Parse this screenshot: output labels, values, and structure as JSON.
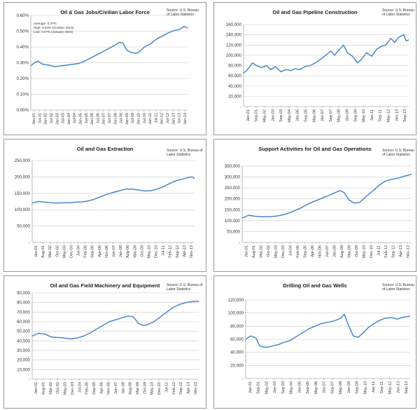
{
  "colors": {
    "line": "#4a86c8",
    "grid": "#c8c8c8",
    "axis": "#8a8a8a",
    "text": "#333333"
  },
  "chart_data": [
    {
      "type": "line",
      "title": "Oil & Gas Jobs/Civilian Labor Force",
      "source_lines": [
        "Source: U.S. Bureau",
        "of Labor Statistics"
      ],
      "stats": [
        "Average: 0.37%",
        "High: 0.53% (October 2013)",
        "Low: 0.27% (January 2003)"
      ],
      "ylim": [
        0,
        0.6
      ],
      "yticks": [
        "0.00%",
        "0.10%",
        "0.20%",
        "0.30%",
        "0.40%",
        "0.50%",
        "0.60%"
      ],
      "xticks": [
        "Jan-01",
        "Jul-01",
        "Jan-02",
        "Jul-02",
        "Jan-03",
        "Jul-03",
        "Jan-04",
        "Jul-04",
        "Jan-05",
        "Jul-05",
        "Jan-06",
        "Jul-06",
        "Jan-07",
        "Jul-07",
        "Jan-08",
        "Jul-08",
        "Jan-09",
        "Jul-09",
        "Jan-10",
        "Jul-10",
        "Jan-11",
        "Jul-11",
        "Jan-12",
        "Jul-12",
        "Jan-13",
        "Jul-13",
        "Jan-14"
      ],
      "x": [
        2001.0,
        2001.3,
        2001.6,
        2002.0,
        2002.5,
        2003.0,
        2003.5,
        2004.0,
        2004.5,
        2005.0,
        2005.5,
        2006.0,
        2006.5,
        2007.0,
        2007.5,
        2008.0,
        2008.4,
        2008.7,
        2009.0,
        2009.4,
        2009.8,
        2010.0,
        2010.5,
        2011.0,
        2011.5,
        2012.0,
        2012.5,
        2013.0,
        2013.4,
        2013.8,
        2014.1
      ],
      "values": [
        0.28,
        0.3,
        0.31,
        0.29,
        0.285,
        0.275,
        0.28,
        0.285,
        0.29,
        0.295,
        0.31,
        0.33,
        0.35,
        0.37,
        0.39,
        0.41,
        0.43,
        0.425,
        0.38,
        0.365,
        0.36,
        0.365,
        0.4,
        0.42,
        0.45,
        0.47,
        0.49,
        0.505,
        0.51,
        0.53,
        0.52
      ]
    },
    {
      "type": "line",
      "title": "Oil and Gas Pipeline Construction",
      "source_lines": [
        "Source: U.S. Bureau",
        "of Labor Statistics"
      ],
      "ylim": [
        0,
        160000
      ],
      "yticks": [
        "-",
        "20,000",
        "40,000",
        "60,000",
        "80,000",
        "100,000",
        "120,000",
        "140,000",
        "160,000"
      ],
      "xticks": [
        "Jan-01",
        "Sep-01",
        "May-02",
        "Jan-03",
        "Sep-03",
        "May-04",
        "Jan-05",
        "Sep-05",
        "May-06",
        "Jan-07",
        "Sep-07",
        "May-08",
        "Jan-09",
        "Sep-09",
        "May-10",
        "Jan-11",
        "Sep-11",
        "May-12",
        "Jan-13",
        "Sep-13"
      ],
      "x": [
        2001.0,
        2001.4,
        2001.7,
        2002.0,
        2002.4,
        2002.8,
        2003.1,
        2003.5,
        2003.9,
        2004.3,
        2004.7,
        2005.0,
        2005.4,
        2005.8,
        2006.2,
        2006.6,
        2007.0,
        2007.4,
        2007.8,
        2008.1,
        2008.5,
        2008.8,
        2009.1,
        2009.5,
        2009.9,
        2010.2,
        2010.6,
        2011.0,
        2011.4,
        2011.8,
        2012.1,
        2012.5,
        2012.8,
        2013.1,
        2013.5,
        2013.7,
        2013.9
      ],
      "values": [
        65000,
        75000,
        85000,
        80000,
        76000,
        80000,
        72000,
        78000,
        68000,
        72000,
        70000,
        74000,
        72000,
        78000,
        80000,
        85000,
        92000,
        100000,
        108000,
        100000,
        112000,
        120000,
        105000,
        98000,
        85000,
        92000,
        105000,
        98000,
        112000,
        118000,
        120000,
        133000,
        125000,
        135000,
        140000,
        128000,
        130000
      ]
    },
    {
      "type": "line",
      "title": "Oil and Gas Extraction",
      "source_lines": [
        "Source: U.S. Bureau of",
        "Labor Statistics"
      ],
      "ylim": [
        0,
        250000
      ],
      "yticks": [
        "-",
        "50,000",
        "100,000",
        "150,000",
        "200,000",
        "250,000"
      ],
      "xticks": [
        "Jan-01",
        "Aug-01",
        "Mar-02",
        "Oct-02",
        "May-03",
        "Dec-03",
        "Jul-04",
        "Feb-05",
        "Sep-05",
        "Apr-06",
        "Nov-06",
        "Jun-07",
        "Jan-08",
        "Aug-08",
        "Mar-09",
        "Oct-09",
        "May-10",
        "Dec-10",
        "Jul-11",
        "Feb-12",
        "Sep-12",
        "Apr-13",
        "Nov-13"
      ],
      "x": [
        2001.0,
        2001.5,
        2002.0,
        2002.5,
        2003.0,
        2003.5,
        2004.0,
        2004.5,
        2005.0,
        2005.5,
        2006.0,
        2006.5,
        2007.0,
        2007.5,
        2008.0,
        2008.5,
        2009.0,
        2009.5,
        2010.0,
        2010.5,
        2011.0,
        2011.5,
        2012.0,
        2012.5,
        2013.0,
        2013.5,
        2013.8,
        2014.0
      ],
      "values": [
        120000,
        125000,
        123000,
        121000,
        120000,
        121000,
        121000,
        123000,
        124000,
        127000,
        132000,
        140000,
        147000,
        153000,
        158000,
        163000,
        163000,
        160000,
        157000,
        158000,
        163000,
        170000,
        180000,
        188000,
        193000,
        198000,
        200000,
        195000
      ]
    },
    {
      "type": "line",
      "title": "Support Activities for Oil and Gas Operations",
      "source_lines": [
        "Source: U.S. Bureau",
        "of Labor Statistics"
      ],
      "ylim": [
        0,
        350000
      ],
      "yticks": [
        "-",
        "50,000",
        "100,000",
        "150,000",
        "200,000",
        "250,000",
        "300,000",
        "350,000"
      ],
      "xticks": [
        "Jan-01",
        "Aug-01",
        "Mar-02",
        "Oct-02",
        "May-03",
        "Dec-03",
        "Jul-04",
        "Feb-05",
        "Sep-05",
        "Apr-06",
        "Nov-06",
        "Jun-07",
        "Jan-08",
        "Aug-08",
        "Mar-09",
        "Oct-09",
        "May-10",
        "Dec-10",
        "Jul-11",
        "Feb-12",
        "Sep-12",
        "Apr-13",
        "Nov-13"
      ],
      "x": [
        2001.0,
        2001.5,
        2002.0,
        2002.5,
        2003.0,
        2003.5,
        2004.0,
        2004.5,
        2005.0,
        2005.5,
        2006.0,
        2006.5,
        2007.0,
        2007.5,
        2008.0,
        2008.5,
        2008.8,
        2009.2,
        2009.6,
        2010.0,
        2010.5,
        2011.0,
        2011.5,
        2012.0,
        2012.5,
        2013.0,
        2013.5,
        2014.0
      ],
      "values": [
        112000,
        125000,
        120000,
        118000,
        118000,
        120000,
        125000,
        133000,
        145000,
        158000,
        175000,
        188000,
        200000,
        212000,
        225000,
        238000,
        230000,
        195000,
        180000,
        183000,
        210000,
        235000,
        262000,
        282000,
        290000,
        295000,
        305000,
        312000
      ]
    },
    {
      "type": "line",
      "title": "Oil and Gas Field Machinery and Equipment",
      "source_lines": [
        "Source: U.S. Bureau of",
        "Labor Statistics"
      ],
      "ylim": [
        0,
        90000
      ],
      "yticks": [
        "-",
        "10,000",
        "20,000",
        "30,000",
        "40,000",
        "50,000",
        "60,000",
        "70,000",
        "80,000",
        "90,000"
      ],
      "xticks": [
        "Jan-01",
        "Aug-01",
        "Mar-02",
        "Oct-02",
        "May-03",
        "Dec-03",
        "Jul-04",
        "Feb-05",
        "Sep-05",
        "Apr-06",
        "Nov-06",
        "Jun-07",
        "Jan-08",
        "Aug-08",
        "Mar-09",
        "Oct-09",
        "May-10",
        "Dec-10",
        "Jul-11",
        "Feb-12",
        "Sep-12",
        "Apr-13",
        "Nov-13"
      ],
      "x": [
        2001.0,
        2001.5,
        2002.0,
        2002.5,
        2003.0,
        2003.5,
        2004.0,
        2004.5,
        2005.0,
        2005.5,
        2006.0,
        2006.5,
        2007.0,
        2007.5,
        2008.0,
        2008.5,
        2008.9,
        2009.3,
        2009.7,
        2010.0,
        2010.5,
        2011.0,
        2011.5,
        2012.0,
        2012.5,
        2013.0,
        2013.5,
        2014.0
      ],
      "values": [
        45000,
        48000,
        47000,
        44000,
        43500,
        43000,
        42000,
        43000,
        45000,
        48000,
        52000,
        56000,
        60000,
        62000,
        64000,
        66000,
        65000,
        58000,
        56000,
        57000,
        60000,
        65000,
        70000,
        75000,
        78000,
        80000,
        81000,
        81500
      ]
    },
    {
      "type": "line",
      "title": "Drilling Oil and Gas Wells",
      "source_lines": [
        "Source: U.S. Bureau",
        "of Labor Statistics"
      ],
      "ylim": [
        0,
        120000
      ],
      "yticks": [
        "-",
        "20,000",
        "40,000",
        "60,000",
        "80,000",
        "100,000",
        "120,000"
      ],
      "xticks": [
        "Jan-01",
        "Sep-01",
        "May-02",
        "Jan-03",
        "Sep-03",
        "May-04",
        "Jan-05",
        "Sep-05",
        "May-06",
        "Jan-07",
        "Sep-07",
        "May-08",
        "Jan-09",
        "Sep-09",
        "May-10",
        "Jan-11",
        "Sep-11",
        "May-12",
        "Jan-13",
        "Sep-13"
      ],
      "x": [
        2001.0,
        2001.4,
        2001.8,
        2002.1,
        2002.4,
        2002.8,
        2003.2,
        2003.6,
        2004.0,
        2004.5,
        2005.0,
        2005.5,
        2006.0,
        2006.5,
        2007.0,
        2007.5,
        2008.0,
        2008.5,
        2008.8,
        2009.1,
        2009.5,
        2009.9,
        2010.3,
        2010.7,
        2011.0,
        2011.5,
        2012.0,
        2012.5,
        2013.0,
        2013.5,
        2014.0
      ],
      "values": [
        60000,
        65000,
        62000,
        50000,
        48000,
        48000,
        50000,
        52000,
        55000,
        58000,
        64000,
        70000,
        76000,
        80000,
        84000,
        86000,
        88000,
        92000,
        98000,
        82000,
        65000,
        63000,
        70000,
        78000,
        82000,
        88000,
        92000,
        93000,
        91000,
        94000,
        95000
      ]
    }
  ]
}
